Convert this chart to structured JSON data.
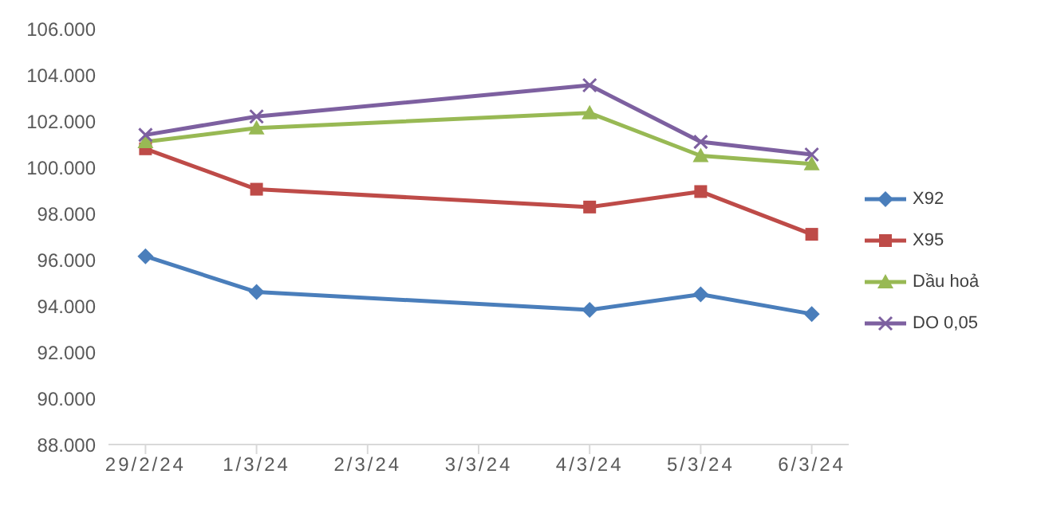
{
  "chart_data": {
    "type": "line",
    "x": [
      "--02-29",
      "--03-01",
      "--03-04",
      "--03-05",
      "--03-06"
    ],
    "series": [
      {
        "name": "X92",
        "color": "#4a7ebb",
        "marker": "diamond",
        "values": [
          96150,
          94600,
          93830,
          94500,
          93650
        ]
      },
      {
        "name": "X95",
        "color": "#be4b48",
        "marker": "square",
        "values": [
          100800,
          99050,
          98280,
          98950,
          97100
        ]
      },
      {
        "name": "Dầu hoả",
        "color": "#98b954",
        "marker": "triangle",
        "values": [
          101100,
          101700,
          102350,
          100500,
          100150
        ]
      },
      {
        "name": "DO 0,05",
        "color": "#7d60a0",
        "marker": "cross",
        "values": [
          101400,
          102200,
          103550,
          101100,
          100550
        ]
      }
    ],
    "xlim": [
      "--02-28T16:00",
      "--03-06T08:00"
    ],
    "xticks": [
      {
        "value": "--02-29",
        "label": "29/2/24"
      },
      {
        "value": "--03-01",
        "label": "1/3/24"
      },
      {
        "value": "--03-02",
        "label": "2/3/24"
      },
      {
        "value": "--03-03",
        "label": "3/3/24"
      },
      {
        "value": "--03-04",
        "label": "4/3/24"
      },
      {
        "value": "--03-05",
        "label": "5/3/24"
      },
      {
        "value": "--03-06",
        "label": "6/3/24"
      }
    ],
    "ylim": [
      88000,
      106000
    ],
    "yticks": [
      {
        "value": 88000,
        "label": "88.000"
      },
      {
        "value": 90000,
        "label": "90.000"
      },
      {
        "value": 92000,
        "label": "92.000"
      },
      {
        "value": 94000,
        "label": "94.000"
      },
      {
        "value": 96000,
        "label": "96.000"
      },
      {
        "value": 98000,
        "label": "98.000"
      },
      {
        "value": 100000,
        "label": "100.000"
      },
      {
        "value": 102000,
        "label": "102.000"
      },
      {
        "value": 104000,
        "label": "104.000"
      },
      {
        "value": 106000,
        "label": "106.000"
      }
    ],
    "grid": false,
    "legend": "right",
    "line_style": "solid"
  }
}
